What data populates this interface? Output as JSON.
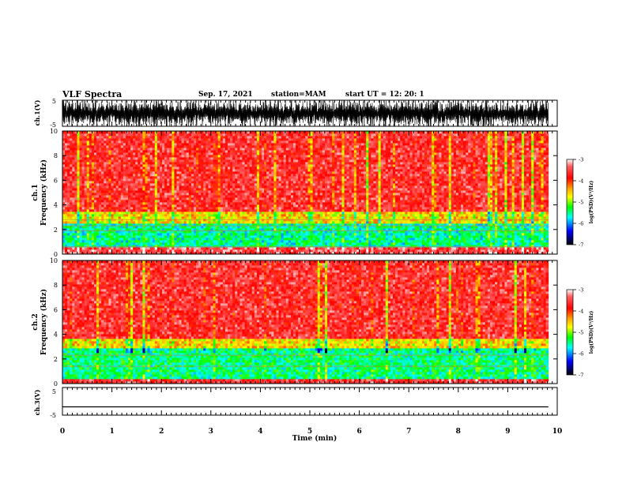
{
  "header": {
    "title": "VLF Spectra",
    "date": "Sep. 17, 2021",
    "station": "station=MAM",
    "start": "start  UT  =   12: 20: 1"
  },
  "chart_data": [
    {
      "type": "line",
      "panel": "ch1-waveform",
      "ylabel": "ch.1(V)",
      "ylim": [
        -5,
        5
      ],
      "yticks": [
        "5",
        "-5"
      ],
      "note_signal": "dense impulsive waveform spanning roughly -5 to 5 V across the record",
      "xlim": [
        0,
        10
      ]
    },
    {
      "type": "heatmap",
      "panel": "ch1-spectrogram",
      "ylabel_top": "ch.1",
      "ylabel": "Frequency  (kHz)",
      "ylim": [
        0,
        10
      ],
      "yticks": [
        "0",
        "2",
        "4",
        "6",
        "8",
        "10"
      ],
      "xlim": [
        0,
        9.82
      ],
      "colorbar": {
        "label": "log(PSD)(V²/Hz)",
        "range": [
          -7,
          -3
        ],
        "ticks": [
          "-3",
          "-4",
          "-5",
          "-6",
          "-7"
        ]
      },
      "bands": [
        {
          "f_low": 0,
          "f_high": 0.5,
          "level": -3.5
        },
        {
          "f_low": 0.5,
          "f_high": 2.5,
          "level": -5.6
        },
        {
          "f_low": 2.5,
          "f_high": 3.5,
          "level": -4.6
        },
        {
          "f_low": 3.5,
          "f_high": 10,
          "level": -3.6
        }
      ],
      "note_lines_kHz": [
        0.6,
        1.9,
        2.3,
        2.8
      ]
    },
    {
      "type": "heatmap",
      "panel": "ch2-spectrogram",
      "ylabel_top": "ch.2",
      "ylabel": "Frequency  (kHz)",
      "ylim": [
        0,
        10
      ],
      "yticks": [
        "0",
        "2",
        "4",
        "6",
        "8",
        "10"
      ],
      "xlim": [
        0,
        9.82
      ],
      "colorbar": {
        "label": "log(PSD)(V²/Hz)",
        "range": [
          -7,
          -3
        ],
        "ticks": [
          "-3",
          "-4",
          "-5",
          "-6",
          "-7"
        ]
      },
      "bands": [
        {
          "f_low": 0,
          "f_high": 0.3,
          "level": -3.6
        },
        {
          "f_low": 0.3,
          "f_high": 2.8,
          "level": -5.5
        },
        {
          "f_low": 2.8,
          "f_high": 3.6,
          "level": -4.6
        },
        {
          "f_low": 3.6,
          "f_high": 10,
          "level": -3.6
        }
      ],
      "note_lines_kHz": [
        1.4,
        2.3
      ]
    },
    {
      "type": "line",
      "panel": "ch3-waveform",
      "ylabel": "ch.3(V)",
      "ylim": [
        -5,
        5
      ],
      "yticks": [
        "5",
        "-5"
      ],
      "x": [
        0,
        9.82
      ],
      "y": [
        -2,
        -2
      ],
      "xlabel": "Time  (min)",
      "xlim": [
        0,
        10
      ],
      "xticks": [
        "0",
        "1",
        "2",
        "3",
        "4",
        "5",
        "6",
        "7",
        "8",
        "9",
        "10"
      ]
    }
  ]
}
